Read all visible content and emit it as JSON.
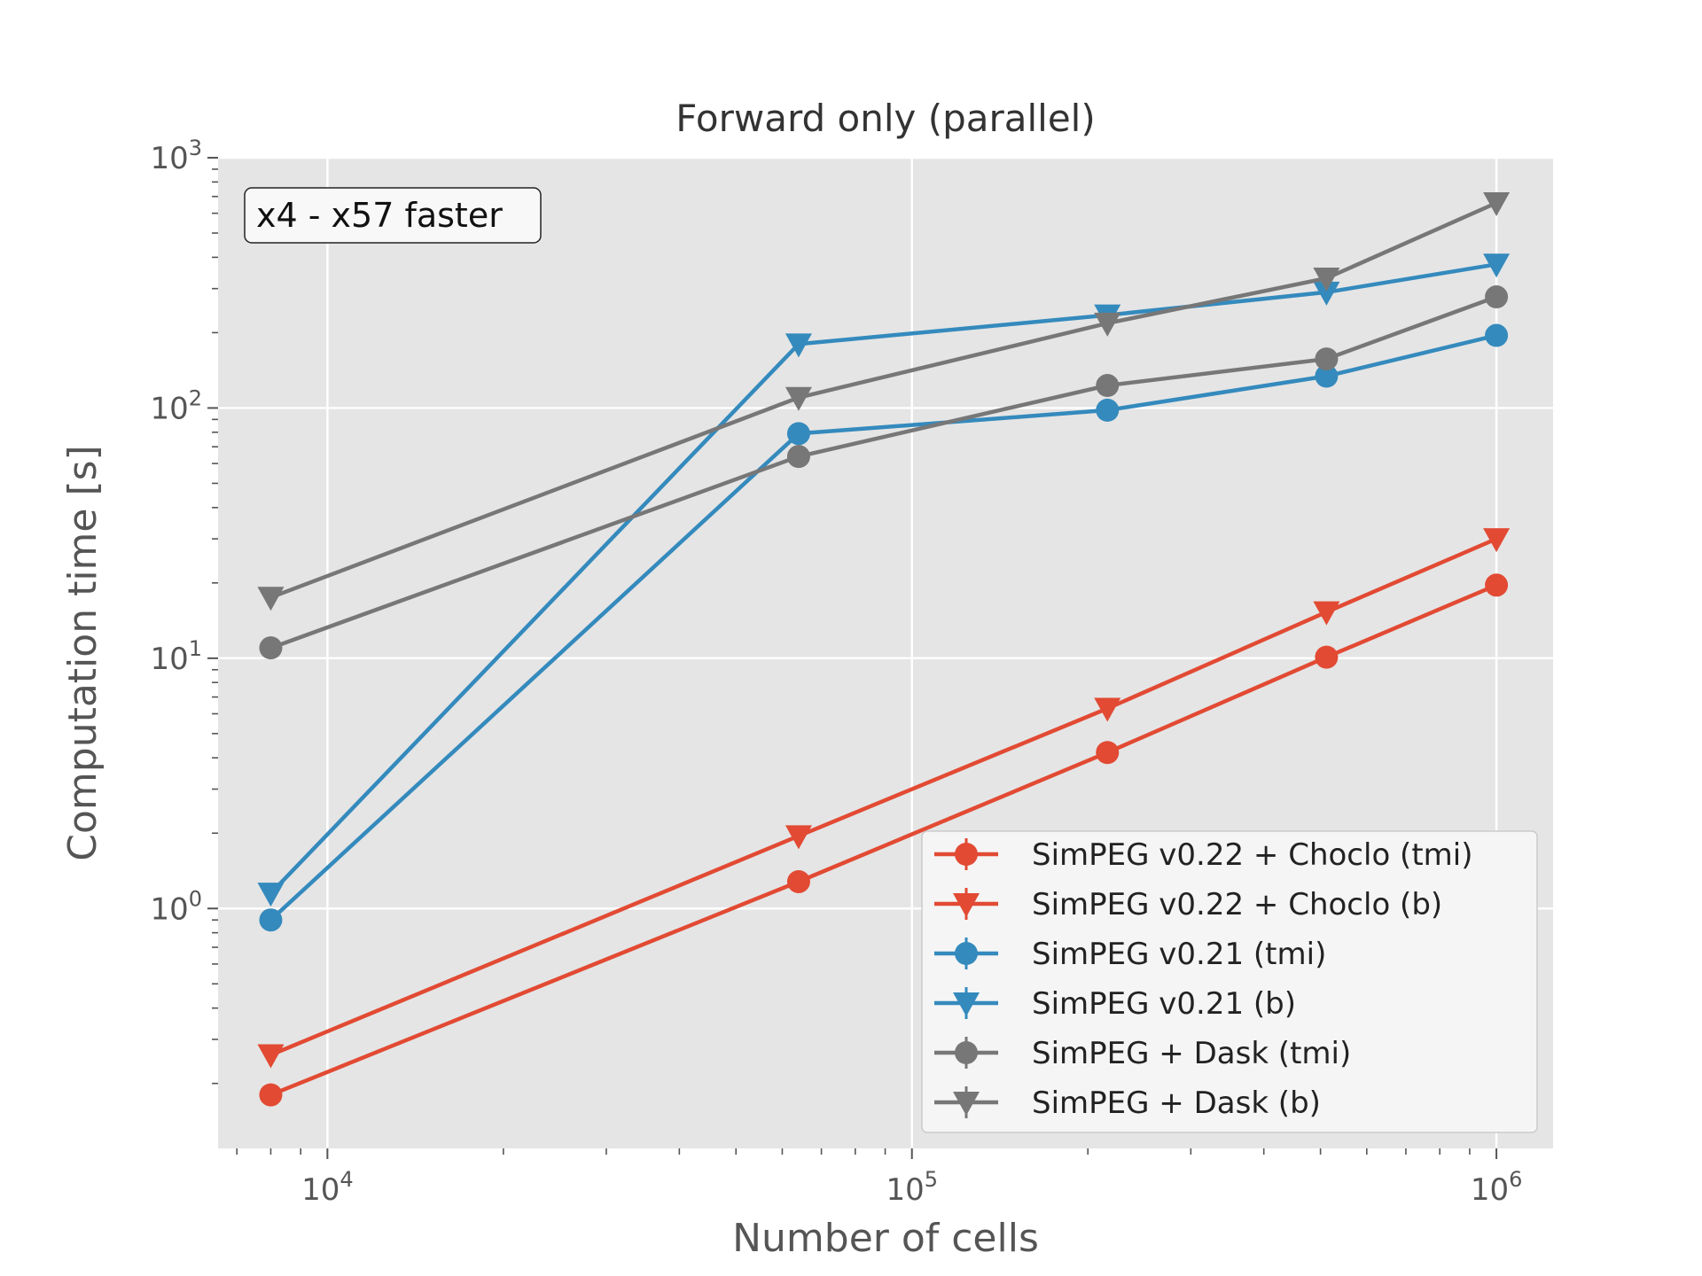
{
  "chart_data": {
    "type": "line",
    "title": "Forward only (parallel)",
    "xlabel": "Number of cells",
    "ylabel": "Computation time [s]",
    "xscale": "log",
    "yscale": "log",
    "xlim": [
      6500,
      1250000
    ],
    "ylim": [
      0.11,
      1000
    ],
    "grid": true,
    "legend_position": "lower-right",
    "annotation": "x4 - x57 faster",
    "x_ticks": [
      {
        "value": 10000,
        "base": "10",
        "exp": "4"
      },
      {
        "value": 100000,
        "base": "10",
        "exp": "5"
      },
      {
        "value": 1000000,
        "base": "10",
        "exp": "6"
      }
    ],
    "y_ticks": [
      {
        "value": 1,
        "base": "10",
        "exp": "0"
      },
      {
        "value": 10,
        "base": "10",
        "exp": "1"
      },
      {
        "value": 100,
        "base": "10",
        "exp": "2"
      },
      {
        "value": 1000,
        "base": "10",
        "exp": "3"
      }
    ],
    "x": [
      8000,
      64000,
      216000,
      512000,
      1000000
    ],
    "series": [
      {
        "name": "SimPEG v0.22 + Choclo (tmi)",
        "color": "#E24A33",
        "marker": "circle",
        "values": [
          0.18,
          1.28,
          4.2,
          10.1,
          19.6
        ]
      },
      {
        "name": "SimPEG v0.22 + Choclo (b)",
        "color": "#E24A33",
        "marker": "triangle",
        "values": [
          0.26,
          1.95,
          6.3,
          15.3,
          30
        ]
      },
      {
        "name": "SimPEG v0.21 (tmi)",
        "color": "#348ABD",
        "marker": "circle",
        "values": [
          0.9,
          79,
          98,
          134,
          195
        ]
      },
      {
        "name": "SimPEG v0.21 (b)",
        "color": "#348ABD",
        "marker": "triangle",
        "values": [
          1.15,
          180,
          235,
          290,
          375
        ]
      },
      {
        "name": "SimPEG + Dask (tmi)",
        "color": "#777777",
        "marker": "circle",
        "values": [
          11,
          64,
          123,
          157,
          278
        ]
      },
      {
        "name": "SimPEG + Dask (b)",
        "color": "#777777",
        "marker": "triangle",
        "values": [
          17.5,
          110,
          218,
          330,
          660
        ]
      }
    ]
  }
}
